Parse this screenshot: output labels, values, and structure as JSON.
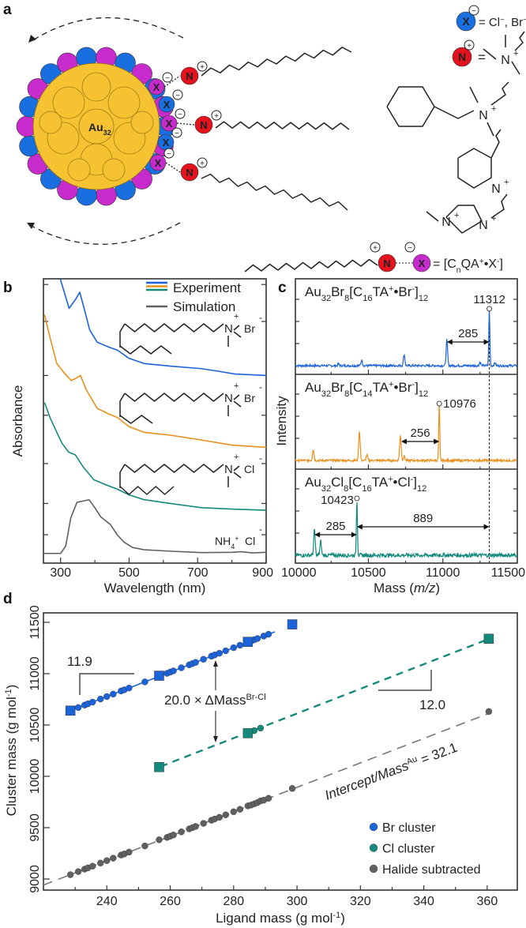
{
  "panel_labels": {
    "a": "a",
    "b": "b",
    "c": "c",
    "d": "d"
  },
  "colors": {
    "blue": "#1c62d8",
    "orange": "#e8901c",
    "teal": "#14897c",
    "gray": "#606060",
    "gold": "#f5c232",
    "purple": "#c82bcc",
    "red": "#e3121c",
    "xblue": "#1a6fe0"
  },
  "panel_a": {
    "cluster_label": [
      [
        "Au",
        ""
      ],
      [
        "32",
        "sub"
      ]
    ],
    "x_symbol": "X",
    "n_symbol": "N",
    "minus_sign": "−",
    "plus_sign": "+",
    "legend_x_text": [
      [
        "= Cl",
        ""
      ],
      [
        "−",
        "sup"
      ],
      [
        ", Br",
        ""
      ],
      [
        "−",
        "sup"
      ]
    ],
    "legend_n_text": "=",
    "ammonium_n": "N",
    "ammonium_plus": "+",
    "formula": [
      [
        "= [C",
        ""
      ],
      [
        "n",
        "sub"
      ],
      [
        "QA",
        ""
      ],
      [
        "+",
        "sup"
      ],
      [
        "•X",
        ""
      ],
      [
        "-",
        "sup"
      ],
      [
        "]",
        ""
      ]
    ]
  },
  "chart_data": [
    {
      "id": "b",
      "type": "line",
      "xlabel": "Wavelength (nm)",
      "ylabel": "Absorbance",
      "xlim": [
        250,
        900
      ],
      "ylim": [
        0,
        10
      ],
      "xticks": [
        300,
        500,
        700,
        900
      ],
      "legend": [
        "Experiment",
        "Simulation"
      ],
      "legend_placement": "top-right",
      "series": [
        {
          "name": "Experiment (C16TA+Br-)",
          "color": "blue",
          "points": [
            [
              270,
              11
            ],
            [
              299,
              10
            ],
            [
              325,
              8.96
            ],
            [
              345,
              9.3
            ],
            [
              356,
              9.53
            ],
            [
              370,
              8.9
            ],
            [
              385,
              8.2
            ],
            [
              407,
              7.77
            ],
            [
              440,
              7.6
            ],
            [
              466,
              7.49
            ],
            [
              500,
              7.2
            ],
            [
              544,
              7.02
            ],
            [
              620,
              6.93
            ],
            [
              711,
              6.84
            ],
            [
              760,
              6.75
            ],
            [
              809,
              6.65
            ],
            [
              900,
              6.6
            ]
          ]
        },
        {
          "name": "Experiment (C14TA+Br-)",
          "color": "orange",
          "points": [
            [
              253,
              8.74
            ],
            [
              270,
              7.9
            ],
            [
              289,
              7.02
            ],
            [
              310,
              6.7
            ],
            [
              331,
              6.42
            ],
            [
              345,
              6.5
            ],
            [
              358,
              6.6
            ],
            [
              375,
              6.1
            ],
            [
              407,
              5.44
            ],
            [
              440,
              5.25
            ],
            [
              466,
              5.12
            ],
            [
              500,
              4.8
            ],
            [
              544,
              4.6
            ],
            [
              620,
              4.5
            ],
            [
              711,
              4.33
            ],
            [
              800,
              4.15
            ],
            [
              900,
              4.07
            ]
          ]
        },
        {
          "name": "Experiment (C16TA+Cl-)",
          "color": "teal",
          "points": [
            [
              253,
              5.65
            ],
            [
              270,
              5.1
            ],
            [
              289,
              4.6
            ],
            [
              305,
              4.2
            ],
            [
              324,
              3.9
            ],
            [
              343,
              3.81
            ],
            [
              365,
              3.4
            ],
            [
              397,
              2.93
            ],
            [
              440,
              2.72
            ],
            [
              466,
              2.6
            ],
            [
              500,
              2.4
            ],
            [
              544,
              2.23
            ],
            [
              620,
              2.1
            ],
            [
              711,
              1.95
            ],
            [
              800,
              1.9
            ],
            [
              900,
              1.86
            ]
          ]
        },
        {
          "name": "Simulation (NH4+Cl-)",
          "color": "gray",
          "points": [
            [
              250,
              0.34
            ],
            [
              300,
              0.34
            ],
            [
              315,
              0.6
            ],
            [
              330,
              1.6
            ],
            [
              348,
              2.14
            ],
            [
              365,
              2.18
            ],
            [
              383,
              2.23
            ],
            [
              400,
              1.95
            ],
            [
              417,
              1.63
            ],
            [
              446,
              1.35
            ],
            [
              465,
              1.0
            ],
            [
              485,
              0.74
            ],
            [
              510,
              0.55
            ],
            [
              544,
              0.47
            ],
            [
              620,
              0.42
            ],
            [
              711,
              0.37
            ],
            [
              800,
              0.38
            ],
            [
              828,
              0.4
            ],
            [
              860,
              0.36
            ],
            [
              900,
              0.38
            ]
          ]
        }
      ],
      "structure_labels": [
        {
          "n": "N",
          "plus": "+",
          "anion": "Br",
          "minus": "-"
        },
        {
          "n": "N",
          "plus": "+",
          "anion": "Br",
          "minus": "-"
        },
        {
          "n": "N",
          "plus": "+",
          "anion": "Cl",
          "minus": "-"
        },
        {
          "cation": [
            [
              "NH",
              ""
            ],
            [
              "4",
              "sub"
            ],
            [
              "+",
              "sup"
            ]
          ],
          "anion": "Cl",
          "minus": "-"
        }
      ]
    },
    {
      "id": "c",
      "type": "line",
      "xlabel": [
        [
          "Mass (",
          ""
        ],
        [
          "m/z",
          "it"
        ],
        [
          ")",
          ""
        ]
      ],
      "ylabel": "Intensity",
      "xlim": [
        10010,
        11500
      ],
      "xticks": [
        10000,
        10500,
        11000,
        11500
      ],
      "reference_line_mass": 11312,
      "spectra": [
        {
          "title": [
            [
              "Au",
              ""
            ],
            [
              "32",
              "sub"
            ],
            [
              "Br",
              ""
            ],
            [
              "8",
              "sub"
            ],
            [
              "[C",
              ""
            ],
            [
              "16",
              "sub"
            ],
            [
              "TA",
              ""
            ],
            [
              "+",
              "sup"
            ],
            [
              "•Br",
              ""
            ],
            [
              "-",
              "sup"
            ],
            [
              "]",
              ""
            ],
            [
              "12",
              "sub"
            ]
          ],
          "color": "blue",
          "peak_label": "11312",
          "peak_mass": 11312,
          "peaks": [
            [
              11312,
              1.0
            ],
            [
              11027,
              0.45
            ],
            [
              10740,
              0.2
            ],
            [
              10455,
              0.1
            ],
            [
              10300,
              0.03
            ],
            [
              11250,
              0.06
            ],
            [
              11350,
              0.05
            ]
          ],
          "annotations": [
            {
              "text": "285",
              "from": 11027,
              "to": 11312
            }
          ]
        },
        {
          "title": [
            [
              "Au",
              ""
            ],
            [
              "32",
              "sub"
            ],
            [
              "Br",
              ""
            ],
            [
              "8",
              "sub"
            ],
            [
              "[C",
              ""
            ],
            [
              "14",
              "sub"
            ],
            [
              "TA",
              ""
            ],
            [
              "+",
              "sup"
            ],
            [
              "•Br",
              ""
            ],
            [
              "-",
              "sup"
            ],
            [
              "]",
              ""
            ],
            [
              "12",
              "sub"
            ]
          ],
          "color": "orange",
          "peak_label": "10976",
          "peak_mass": 10976,
          "peaks": [
            [
              10976,
              1.0
            ],
            [
              10715,
              0.45
            ],
            [
              10440,
              0.52
            ],
            [
              10130,
              0.2
            ],
            [
              10490,
              0.1
            ],
            [
              10740,
              0.08
            ]
          ],
          "annotations": [
            {
              "text": "256",
              "from": 10720,
              "to": 10976
            }
          ]
        },
        {
          "title": [
            [
              "Au",
              ""
            ],
            [
              "32",
              "sub"
            ],
            [
              "Cl",
              ""
            ],
            [
              "8",
              "sub"
            ],
            [
              "[C",
              ""
            ],
            [
              "16",
              "sub"
            ],
            [
              "TA",
              ""
            ],
            [
              "+",
              "sup"
            ],
            [
              "•Cl",
              ""
            ],
            [
              "-",
              "sup"
            ],
            [
              "]",
              ""
            ],
            [
              "12",
              "sub"
            ]
          ],
          "color": "teal",
          "peak_label": "10423",
          "peak_mass": 10423,
          "peaks": [
            [
              10423,
              1.0
            ],
            [
              10138,
              0.45
            ],
            [
              10180,
              0.25
            ]
          ],
          "annotations": [
            {
              "text": "285",
              "from": 10138,
              "to": 10423
            },
            {
              "text": "889",
              "from": 10423,
              "to": 11312
            }
          ]
        }
      ]
    },
    {
      "id": "d",
      "type": "scatter",
      "xlabel": [
        [
          "Ligand mass (g mol",
          ""
        ],
        [
          "-1",
          "sup"
        ],
        [
          ")",
          ""
        ]
      ],
      "ylabel": [
        [
          "Cluster mass (g mol",
          ""
        ],
        [
          "-1",
          "sup"
        ],
        [
          ")",
          ""
        ]
      ],
      "xlim": [
        220,
        369.5
      ],
      "ylim": [
        8892,
        11592
      ],
      "xticks": [
        240,
        260,
        280,
        300,
        320,
        340,
        360
      ],
      "yticks": [
        9000,
        9500,
        10000,
        10500,
        11000,
        11500
      ],
      "legend_placement": "bottom-right",
      "series": [
        {
          "name": "Br cluster",
          "color": "blue",
          "squares": [
            [
              228.5,
              10640
            ],
            [
              256.5,
              10980
            ],
            [
              284.5,
              11310
            ],
            [
              298.5,
              11480
            ]
          ],
          "x": [
            231,
            233,
            234,
            235.5,
            238,
            240,
            242,
            244.5,
            245.5,
            247,
            252,
            259,
            260,
            261,
            263.5,
            266,
            267,
            268,
            270.5,
            273,
            274,
            275.5,
            277.5,
            280,
            282,
            285.5,
            286.5,
            287.5,
            289.5,
            291
          ],
          "y": [
            10670,
            10694,
            10706,
            10723,
            10753,
            10777,
            10801,
            10831,
            10842,
            10860,
            10920,
            11003,
            11015,
            11027,
            11057,
            11086,
            11098,
            11110,
            11140,
            11170,
            11182,
            11199,
            11223,
            11253,
            11277,
            11318,
            11330,
            11342,
            11366,
            11384
          ],
          "fit": {
            "slope": 11.9,
            "x_range": [
              228,
              293
            ],
            "style": "solid",
            "intercept": 7921
          }
        },
        {
          "name": "Cl cluster",
          "color": "teal",
          "squares": [
            [
              256.5,
              10090
            ],
            [
              284.5,
              10420
            ],
            [
              360.5,
              11340
            ]
          ],
          "x": [
            286.5,
            288.5
          ],
          "y": [
            10445,
            10470
          ],
          "fit": {
            "slope": 12.0,
            "x_range": [
              257,
              360
            ],
            "style": "dashed",
            "intercept": 7012
          }
        },
        {
          "name": "Halide subtracted",
          "color": "gray",
          "x": [
            228.5,
            231,
            233,
            234,
            235.5,
            238,
            240,
            242,
            244.5,
            245.5,
            247,
            252,
            256.5,
            259,
            260,
            261,
            263.5,
            266,
            267,
            268,
            270.5,
            273,
            274,
            275.5,
            277.5,
            280,
            282,
            284.5,
            285.5,
            286.5,
            287.5,
            288.5,
            289.5,
            291,
            298.5,
            360.5
          ],
          "y": [
            9042,
            9072,
            9096,
            9108,
            9125,
            9155,
            9179,
            9203,
            9233,
            9244,
            9262,
            9322,
            9382,
            9405,
            9417,
            9429,
            9459,
            9488,
            9500,
            9512,
            9542,
            9572,
            9584,
            9601,
            9625,
            9655,
            9679,
            9712,
            9720,
            9732,
            9744,
            9761,
            9768,
            9786,
            9882,
            10631
          ],
          "fit": {
            "slope": 11.9,
            "x_range": [
              220,
              360
            ],
            "style": "long-dashed",
            "intercept": 6323
          }
        }
      ],
      "annotations": {
        "slope_br": "11.9",
        "slope_cl": "12.0",
        "offset": [
          [
            "20.0 × ΔMass",
            ""
          ],
          [
            "Br-Cl",
            "sup"
          ]
        ],
        "intercept": [
          [
            "Intercept/Mass",
            "it"
          ],
          [
            "Au",
            "sup"
          ],
          [
            " = 32.1",
            ""
          ]
        ]
      }
    }
  ]
}
